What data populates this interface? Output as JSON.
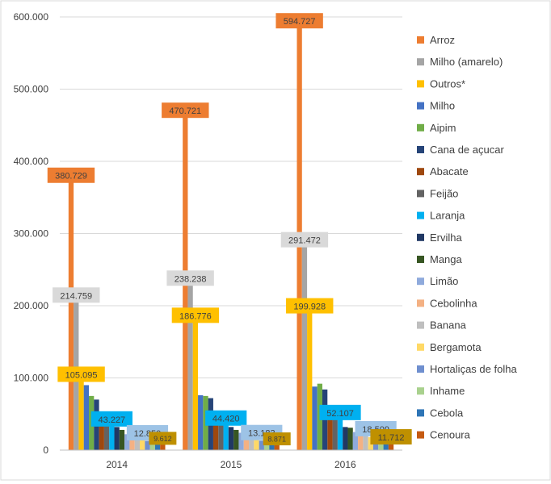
{
  "chart_data": {
    "type": "bar",
    "title": "",
    "xlabel": "",
    "ylabel": "",
    "ylim": [
      0,
      600000
    ],
    "y_ticks": [
      "0",
      "100.000",
      "200.000",
      "300.000",
      "400.000",
      "500.000",
      "600.000"
    ],
    "categories": [
      "2014",
      "2015",
      "2016"
    ],
    "series": [
      {
        "name": "Arroz",
        "color": "#ED7D31",
        "values": [
          380729,
          470721,
          594727
        ]
      },
      {
        "name": "Milho (amarelo)",
        "color": "#A5A5A5",
        "values": [
          214759,
          238238,
          291472
        ]
      },
      {
        "name": "Outros*",
        "color": "#FFC000",
        "values": [
          105095,
          186776,
          199928
        ]
      },
      {
        "name": "Milho",
        "color": "#4472C4",
        "values": [
          90000,
          76000,
          88000
        ]
      },
      {
        "name": "Aipim",
        "color": "#70AD47",
        "values": [
          75000,
          75000,
          92000
        ]
      },
      {
        "name": "Cana de açucar",
        "color": "#264478",
        "values": [
          70000,
          72000,
          84000
        ]
      },
      {
        "name": "Abacate",
        "color": "#9E480E",
        "values": [
          50000,
          52000,
          60000
        ]
      },
      {
        "name": "Feijão",
        "color": "#636363",
        "values": [
          48000,
          50000,
          58000
        ]
      },
      {
        "name": "Laranja",
        "color": "#00B0F0",
        "values": [
          43227,
          44420,
          52107
        ]
      },
      {
        "name": "Ervilha",
        "color": "#203864",
        "values": [
          32000,
          32000,
          32000
        ]
      },
      {
        "name": "Manga",
        "color": "#375623",
        "values": [
          28000,
          28000,
          31000
        ]
      },
      {
        "name": "Limão",
        "color": "#8FAADC",
        "values": [
          22000,
          24000,
          25000
        ]
      },
      {
        "name": "Cebolinha",
        "color": "#F4B183",
        "values": [
          20000,
          18000,
          22000
        ]
      },
      {
        "name": "Banana",
        "color": "#BFBFBF",
        "values": [
          18000,
          17000,
          21000
        ]
      },
      {
        "name": "Bergamota",
        "color": "#FFD966",
        "values": [
          15000,
          15000,
          18000
        ]
      },
      {
        "name": "Hortaliças de folha",
        "color": "#6F8FCF",
        "values": [
          12850,
          13183,
          18509
        ]
      },
      {
        "name": "Inhame",
        "color": "#A9D18E",
        "values": [
          12000,
          12000,
          16000
        ]
      },
      {
        "name": "Cebola",
        "color": "#2E75B6",
        "values": [
          10000,
          10000,
          14000
        ]
      },
      {
        "name": "Cenoura",
        "color": "#C55A11",
        "values": [
          9612,
          8871,
          11712
        ]
      }
    ],
    "data_labels": [
      {
        "series": "Arroz",
        "texts": [
          "380.729",
          "470.721",
          "594.727"
        ],
        "bg": "#ED7D31"
      },
      {
        "series": "Milho (amarelo)",
        "texts": [
          "214.759",
          "238.238",
          "291.472"
        ],
        "bg": "#D9D9D9"
      },
      {
        "series": "Outros*",
        "texts": [
          "105.095",
          "186.776",
          "199.928"
        ],
        "bg": "#FFC000"
      },
      {
        "series": "Laranja",
        "texts": [
          "43.227",
          "44.420",
          "52.107"
        ],
        "bg": "#00B0F0"
      },
      {
        "series": "Hortaliças de folha",
        "texts": [
          "12.850",
          "13.183",
          "18.509"
        ],
        "bg": "#9DC3E6"
      },
      {
        "series": "Cenoura",
        "texts": [
          "9.612",
          "8.871",
          "11.712"
        ],
        "bg": "#BF9000"
      }
    ],
    "legend_position": "right",
    "grid": true
  }
}
